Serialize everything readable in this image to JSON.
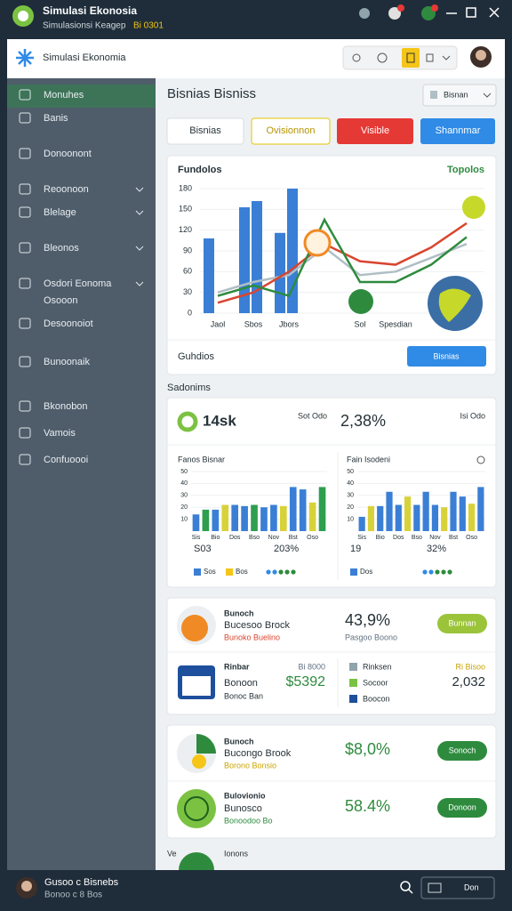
{
  "titlebar": {
    "title": "Simulasi Ekonosia",
    "subtitle": "Simulasionsi Keagep",
    "subtitle_tag": "Bi 0301"
  },
  "app_header": {
    "brand": "Simulasi Ekonomia"
  },
  "sidebar": {
    "items": [
      "Monuhes",
      "Banis",
      "Donoonont",
      "Reoonoon",
      "Blelage",
      "Bleonos",
      "Osdori Eonoma",
      "Desoonoiot",
      "Bunoonaik",
      "Bkonobon",
      "Vamois",
      "Confuoooi"
    ],
    "sub_item": "Osooon"
  },
  "page": {
    "title": "Bisnias Bisniss",
    "dropdown": "Bisnan",
    "buttons": [
      "Bisnias",
      "Ovisionnon",
      "Visible",
      "Shannmar"
    ]
  },
  "main_chart": {
    "type": "bar",
    "title": "Fundolos",
    "link": "Topolos",
    "categories": [
      "Jaol",
      "Sbos",
      "Jbors",
      null,
      "Sol",
      "Spesdian",
      null,
      null
    ],
    "ylim": [
      0,
      180
    ],
    "yticks": [
      0,
      30,
      60,
      90,
      120,
      150,
      180
    ],
    "bar_series": [
      {
        "color": "#3a7fd5",
        "values": [
          108,
          153,
          116,
          null,
          null,
          null,
          null,
          null
        ]
      },
      {
        "color": "#3a7fd5",
        "values": [
          null,
          162,
          180,
          null,
          null,
          null,
          null,
          null
        ]
      }
    ],
    "line_series": [
      {
        "color": "#b0bec5",
        "values": [
          30,
          45,
          55,
          95,
          55,
          60,
          80,
          100
        ]
      },
      {
        "color": "#d9452f",
        "values": [
          15,
          30,
          60,
          100,
          75,
          70,
          95,
          130
        ]
      },
      {
        "color": "#2e8b3e",
        "values": [
          25,
          40,
          25,
          135,
          45,
          45,
          70,
          110
        ]
      }
    ],
    "footer": "Guhdios",
    "button": "Bisnias"
  },
  "section_label": "Sadonims",
  "stats": {
    "kpi1": "14sk",
    "kpi1_note": "Sot Odo",
    "kpi2": "2,38%",
    "kpi2_note": "Isi Odo"
  },
  "mini_charts": [
    {
      "title": "Fanos Bisnar",
      "categories": [
        "Sis",
        null,
        "Bio",
        null,
        "Dos",
        null,
        "Bso",
        null,
        "Nov",
        null,
        "Bst",
        null,
        "Oso",
        null
      ],
      "ylim": [
        0,
        50
      ],
      "yticks": [
        10,
        20,
        30,
        40,
        50
      ],
      "values": [
        14,
        18,
        18,
        22,
        22,
        21,
        22,
        20,
        22,
        21,
        37,
        35,
        24,
        37
      ],
      "colors": [
        "#3a7fd5",
        "#2e9e4f",
        "#3a7fd5",
        "#d8d23a",
        "#3a7fd5",
        "#3a7fd5",
        "#2e9e4f",
        "#3a7fd5",
        "#3a7fd5",
        "#d8d23a",
        "#3a7fd5",
        "#3a7fd5",
        "#d8d23a",
        "#2e9e4f"
      ],
      "stat1": "S03",
      "stat2": "203%",
      "legend": [
        "Sos",
        "Bos"
      ]
    },
    {
      "title": "Fain Isodeni",
      "categories": [
        "Sis",
        null,
        "Bio",
        null,
        "Dos",
        null,
        "Bso",
        null,
        "Nov",
        null,
        "Bst",
        null,
        "Oso",
        null
      ],
      "ylim": [
        0,
        50
      ],
      "yticks": [
        10,
        20,
        30,
        40,
        50
      ],
      "values": [
        12,
        21,
        21,
        33,
        22,
        29,
        22,
        33,
        22,
        20,
        33,
        29,
        23,
        37
      ],
      "colors": [
        "#3a7fd5",
        "#d8d23a",
        "#3a7fd5",
        "#3a7fd5",
        "#3a7fd5",
        "#d8d23a",
        "#3a7fd5",
        "#3a7fd5",
        "#3a7fd5",
        "#d8d23a",
        "#3a7fd5",
        "#3a7fd5",
        "#d8d23a",
        "#3a7fd5"
      ],
      "stat1": "19",
      "stat2": "32%",
      "legend": [
        "Dos"
      ]
    }
  ],
  "card_a": {
    "row1": {
      "kicker": "Bunoch",
      "name": "Bucesoo Brock",
      "tag": "Bunoko Buelino",
      "value": "43,9%",
      "note": "Pasgoo Boono",
      "button": "Bunnan"
    },
    "row2": {
      "kicker": "Rinbar",
      "name": "Bonoon",
      "tag": "Bonoc Ban",
      "note": "Bi 8000",
      "value": "$5392",
      "list": [
        "Rinksen",
        "Socoor",
        "Boocon"
      ],
      "right_note": "Ri Bisoo",
      "right_value": "2,032"
    }
  },
  "card_b": {
    "row1": {
      "kicker": "Bunoch",
      "name": "Bucongo Brook",
      "tag": "Borono Bonsio",
      "value": "$8,0%",
      "button": "Sonoch"
    },
    "row2": {
      "kicker": "Bulovionio",
      "name": "Bunosco",
      "tag": "Bonoodoo Bo",
      "value": "58.4%",
      "button": "Donoon"
    }
  },
  "footer_peek": {
    "left": "Ve",
    "label": "Ionons"
  },
  "bottom_bar": {
    "name": "Gusoo c Bisnebs",
    "sub": "Bonoo c 8 Bos",
    "control": "Don"
  }
}
